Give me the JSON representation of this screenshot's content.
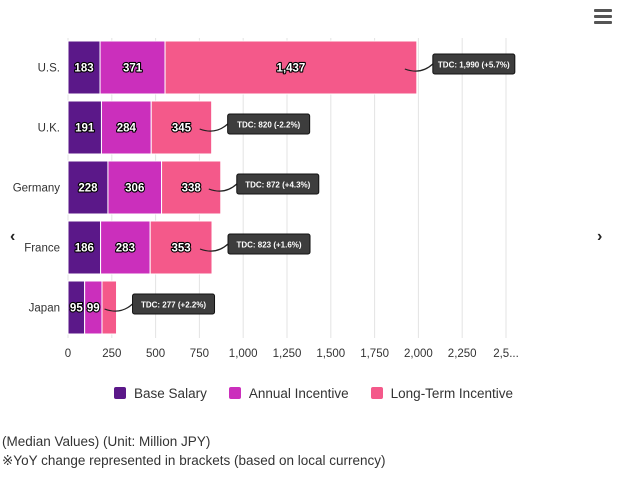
{
  "menu": {
    "icon": "hamburger-menu-icon"
  },
  "nav": {
    "prev": "‹",
    "next": "›"
  },
  "chart_data": {
    "type": "bar",
    "orientation": "horizontal",
    "stacked": true,
    "categories": [
      "U.S.",
      "U.K.",
      "Germany",
      "France",
      "Japan"
    ],
    "series": [
      {
        "name": "Base Salary",
        "values": [
          183,
          191,
          228,
          186,
          95
        ],
        "labels": [
          "183",
          "191",
          "228",
          "186",
          "95"
        ],
        "color": "#5b1889"
      },
      {
        "name": "Annual Incentive",
        "values": [
          371,
          284,
          306,
          283,
          99
        ],
        "labels": [
          "371",
          "284",
          "306",
          "283",
          "99"
        ],
        "color": "#cb2fbc"
      },
      {
        "name": "Long-Term Incentive",
        "values": [
          1437,
          345,
          338,
          353,
          83
        ],
        "labels": [
          "1,437",
          "345",
          "338",
          "353",
          ""
        ],
        "color": "#f4598a"
      }
    ],
    "annotations": [
      "TDC: 1,990 (+5.7%)",
      "TDC: 820 (-2.2%)",
      "TDC: 872 (+4.3%)",
      "TDC: 823 (+1.6%)",
      "TDC: 277 (+2.2%)"
    ],
    "xticks": [
      "0",
      "250",
      "500",
      "750",
      "1,000",
      "1,250",
      "1,500",
      "1,750",
      "2,000",
      "2,250",
      "2,5..."
    ],
    "xlim": [
      0,
      2500
    ],
    "grid": true,
    "legend_position": "bottom"
  },
  "notes": {
    "line1": "(Median Values) (Unit: Million JPY)",
    "line2": "※YoY change represented in brackets (based on local currency)"
  }
}
